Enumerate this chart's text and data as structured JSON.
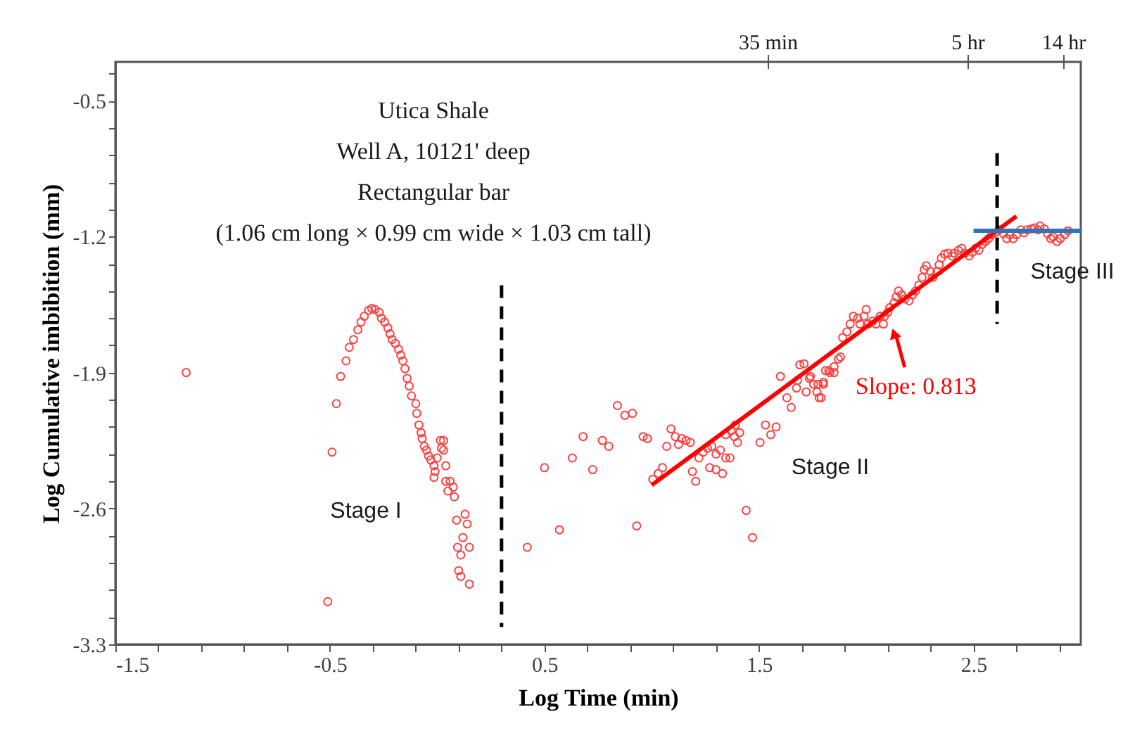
{
  "chart_data": {
    "type": "scatter",
    "xlabel": "Log Time (min)",
    "ylabel": "Log Cumulative imbibition (mm)",
    "xlim": [
      -1.5,
      3.0
    ],
    "ylim": [
      -3.3,
      -0.3
    ],
    "xticks": [
      -1.5,
      {
        "value": -1.3,
        "label": null
      },
      {
        "value": -1.1,
        "label": null
      },
      {
        "value": -0.9,
        "label": null
      },
      {
        "value": -0.7,
        "label": null
      },
      -0.5,
      {
        "value": -0.3,
        "label": null
      },
      {
        "value": -0.1,
        "label": null
      },
      {
        "value": 0.1,
        "label": null
      },
      {
        "value": 0.3,
        "label": null
      },
      0.5,
      {
        "value": 0.7,
        "label": null
      },
      {
        "value": 0.9,
        "label": null
      },
      {
        "value": 1.1,
        "label": null
      },
      {
        "value": 1.3,
        "label": null
      },
      1.5,
      {
        "value": 1.7,
        "label": null
      },
      {
        "value": 1.9,
        "label": null
      },
      {
        "value": 2.1,
        "label": null
      },
      {
        "value": 2.3,
        "label": null
      },
      2.5,
      {
        "value": 2.7,
        "label": null
      },
      {
        "value": 2.9,
        "label": null
      }
    ],
    "yticks": [
      -3.3,
      {
        "value": -3.16,
        "label": null
      },
      {
        "value": -3.02,
        "label": null
      },
      {
        "value": -2.88,
        "label": null
      },
      {
        "value": -2.74,
        "label": null
      },
      -2.6,
      {
        "value": -2.46,
        "label": null
      },
      {
        "value": -2.32,
        "label": null
      },
      {
        "value": -2.18,
        "label": null
      },
      {
        "value": -2.04,
        "label": null
      },
      -1.9,
      {
        "value": -1.76,
        "label": null
      },
      {
        "value": -1.62,
        "label": null
      },
      {
        "value": -1.48,
        "label": null
      },
      {
        "value": -1.34,
        "label": null
      },
      -1.2,
      {
        "value": -1.06,
        "label": null
      },
      {
        "value": -0.92,
        "label": null
      },
      {
        "value": -0.78,
        "label": null
      },
      {
        "value": -0.64,
        "label": null
      },
      -0.5,
      {
        "value": -0.36,
        "label": null
      }
    ],
    "grid": false,
    "series": [
      {
        "marker": "circle",
        "color": "#ff4040",
        "x": [
          -1.17,
          -0.51,
          -0.49,
          -0.47,
          -0.45,
          -0.425,
          -0.41,
          -0.39,
          -0.37,
          -0.355,
          -0.34,
          -0.32,
          -0.305,
          -0.29,
          -0.27,
          -0.26,
          -0.245,
          -0.23,
          -0.22,
          -0.21,
          -0.195,
          -0.18,
          -0.17,
          -0.16,
          -0.15,
          -0.14,
          -0.13,
          -0.12,
          -0.1,
          -0.095,
          -0.085,
          -0.075,
          -0.07,
          -0.06,
          -0.05,
          -0.04,
          -0.03,
          -0.015,
          -0.01,
          -0.015,
          0.0,
          0.015,
          0.03,
          0.02,
          0.03,
          0.04,
          0.04,
          0.06,
          0.075,
          0.05,
          0.08,
          0.13,
          0.09,
          0.14,
          0.12,
          0.095,
          0.15,
          0.11,
          0.1,
          0.11,
          0.15,
          0.42,
          0.57,
          0.5,
          0.63,
          0.725,
          0.68,
          0.77,
          0.8,
          0.84,
          0.875,
          0.91,
          0.93,
          0.96,
          0.98,
          1.005,
          1.03,
          1.05,
          1.07,
          1.09,
          1.11,
          1.125,
          1.14,
          1.16,
          1.18,
          1.19,
          1.205,
          1.22,
          1.24,
          1.26,
          1.28,
          1.3,
          1.32,
          1.27,
          1.3,
          1.33,
          1.345,
          1.365,
          1.345,
          1.37,
          1.39,
          1.41,
          1.385,
          1.4,
          1.44,
          1.47,
          1.505,
          1.53,
          1.555,
          1.58,
          1.6,
          1.63,
          1.65,
          1.675,
          1.72,
          1.755,
          1.77,
          1.79,
          1.8,
          1.74,
          1.825,
          1.85,
          1.69,
          1.71,
          1.68,
          1.735,
          1.775,
          1.8,
          1.78,
          1.81,
          1.83,
          1.85,
          1.87,
          1.88,
          1.89,
          1.91,
          1.925,
          1.94,
          1.96,
          1.97,
          1.99,
          2.0,
          2.01,
          2.03,
          2.045,
          2.065,
          2.08,
          2.085,
          2.1,
          2.11,
          2.13,
          2.14,
          2.15,
          2.165,
          2.18,
          2.2,
          2.215,
          2.23,
          2.245,
          2.26,
          2.27,
          2.28,
          2.3,
          2.31,
          2.33,
          2.34,
          2.35,
          2.365,
          2.38,
          2.4,
          2.41,
          2.43,
          2.445,
          2.46,
          2.48,
          2.495,
          2.51,
          2.525,
          2.54,
          2.555,
          2.57,
          2.585,
          2.6,
          2.62,
          2.64,
          2.655,
          2.67,
          2.685,
          2.7,
          2.72,
          2.735,
          2.75,
          2.77,
          2.785,
          2.8,
          2.81,
          2.83,
          2.845,
          2.86,
          2.87,
          2.89,
          2.905,
          2.925,
          2.94
        ],
        "values": [
          -1.9,
          -3.08,
          -2.31,
          -2.06,
          -1.92,
          -1.84,
          -1.77,
          -1.73,
          -1.68,
          -1.64,
          -1.61,
          -1.58,
          -1.57,
          -1.575,
          -1.59,
          -1.62,
          -1.64,
          -1.67,
          -1.7,
          -1.73,
          -1.75,
          -1.78,
          -1.81,
          -1.84,
          -1.88,
          -1.93,
          -1.97,
          -2.02,
          -2.06,
          -2.11,
          -2.17,
          -2.21,
          -2.24,
          -2.28,
          -2.3,
          -2.33,
          -2.35,
          -2.38,
          -2.41,
          -2.44,
          -2.34,
          -2.25,
          -2.25,
          -2.29,
          -2.3,
          -2.38,
          -2.46,
          -2.46,
          -2.49,
          -2.51,
          -2.54,
          -2.63,
          -2.66,
          -2.68,
          -2.75,
          -2.8,
          -2.8,
          -2.84,
          -2.92,
          -2.95,
          -2.99,
          -2.8,
          -2.71,
          -2.39,
          -2.34,
          -2.4,
          -2.23,
          -2.25,
          -2.28,
          -2.07,
          -2.12,
          -2.11,
          -2.69,
          -2.23,
          -2.24,
          -2.45,
          -2.42,
          -2.39,
          -2.28,
          -2.19,
          -2.23,
          -2.27,
          -2.24,
          -2.25,
          -2.26,
          -2.41,
          -2.46,
          -2.34,
          -2.31,
          -2.29,
          -2.28,
          -2.32,
          -2.3,
          -2.39,
          -2.4,
          -2.42,
          -2.34,
          -2.34,
          -2.22,
          -2.2,
          -2.17,
          -2.21,
          -2.23,
          -2.26,
          -2.61,
          -2.75,
          -2.26,
          -2.17,
          -2.22,
          -2.18,
          -1.92,
          -2.03,
          -2.08,
          -1.98,
          -2.0,
          -1.96,
          -2.0,
          -2.03,
          -1.96,
          -1.92,
          -1.89,
          -1.9,
          -1.86,
          -1.855,
          -1.94,
          -1.93,
          -1.96,
          -1.95,
          -2.03,
          -1.89,
          -1.9,
          -1.87,
          -1.83,
          -1.82,
          -1.72,
          -1.69,
          -1.65,
          -1.61,
          -1.62,
          -1.65,
          -1.61,
          -1.575,
          -1.65,
          -1.635,
          -1.65,
          -1.61,
          -1.65,
          -1.61,
          -1.59,
          -1.565,
          -1.54,
          -1.51,
          -1.48,
          -1.5,
          -1.52,
          -1.53,
          -1.5,
          -1.48,
          -1.45,
          -1.41,
          -1.37,
          -1.35,
          -1.38,
          -1.41,
          -1.38,
          -1.345,
          -1.31,
          -1.29,
          -1.285,
          -1.3,
          -1.285,
          -1.27,
          -1.26,
          -1.285,
          -1.3,
          -1.28,
          -1.26,
          -1.27,
          -1.24,
          -1.225,
          -1.21,
          -1.19,
          -1.18,
          -1.165,
          -1.185,
          -1.21,
          -1.19,
          -1.21,
          -1.19,
          -1.165,
          -1.18,
          -1.165,
          -1.16,
          -1.155,
          -1.165,
          -1.145,
          -1.16,
          -1.185,
          -1.21,
          -1.2,
          -1.225,
          -1.21,
          -1.19,
          -1.17
        ]
      },
      {
        "type": "line",
        "color": "#ff0000",
        "line_style": "solid",
        "x": [
          1.0,
          2.7
        ],
        "values": [
          -2.48,
          -1.095
        ]
      },
      {
        "type": "line",
        "color": "#000000",
        "line_style": "dashed",
        "x": [
          0.3,
          0.3
        ],
        "values": [
          -1.45,
          -3.21
        ]
      },
      {
        "type": "line",
        "color": "#000000",
        "line_style": "dashed",
        "x": [
          2.61,
          2.61
        ],
        "values": [
          -0.77,
          -1.65
        ]
      },
      {
        "type": "line",
        "color": "#2e75b6",
        "line_style": "solid",
        "x": [
          2.5,
          3.0
        ],
        "values": [
          -1.17,
          -1.17
        ]
      }
    ],
    "annotations": [
      "Utica Shale",
      "Well A, 10121' deep",
      "Rectangular bar",
      "(1.06 cm long × 0.99 cm wide × 1.03 cm tall)",
      "Stage I",
      "Stage II",
      "Stage III",
      "35 min",
      "5 hr",
      "14 hr",
      {
        "text": "Slope: 0.813",
        "x": 2.12,
        "y": -1.67
      }
    ]
  }
}
